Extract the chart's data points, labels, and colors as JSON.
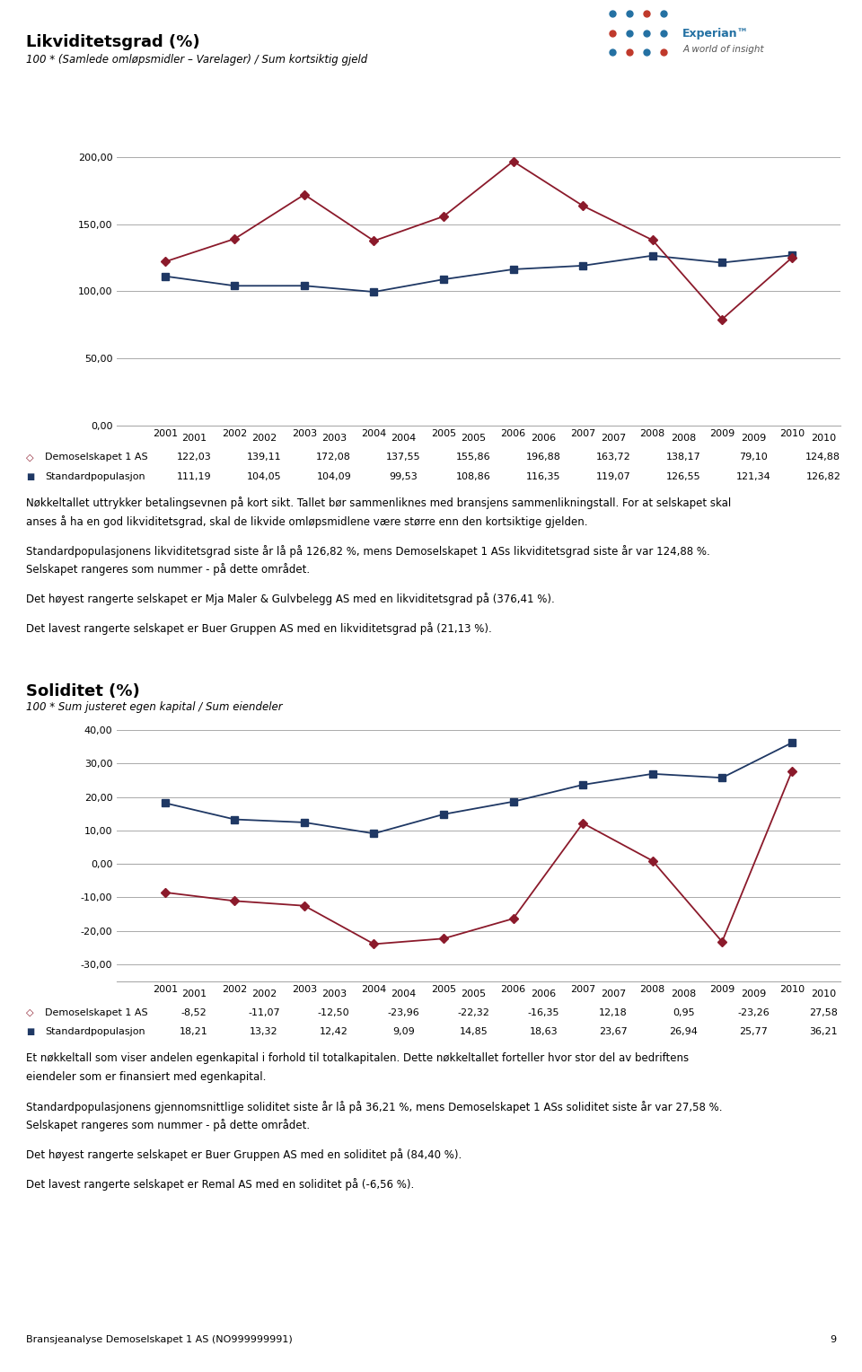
{
  "years": [
    2001,
    2002,
    2003,
    2004,
    2005,
    2006,
    2007,
    2008,
    2009,
    2010
  ],
  "liq_title": "Likviditetsgrad (%)",
  "liq_subtitle": "100 * (Samlede omløpsmidler – Varelager) / Sum kortsiktig gjeld",
  "liq_demo": [
    122.03,
    139.11,
    172.08,
    137.55,
    155.86,
    196.88,
    163.72,
    138.17,
    79.1,
    124.88
  ],
  "liq_std": [
    111.19,
    104.05,
    104.09,
    99.53,
    108.86,
    116.35,
    119.07,
    126.55,
    121.34,
    126.82
  ],
  "liq_ylim": [
    0,
    220
  ],
  "liq_yticks": [
    0.0,
    50.0,
    100.0,
    150.0,
    200.0
  ],
  "sol_title": "Soliditet (%)",
  "sol_subtitle": "100 * Sum justeret egen kapital / Sum eiendeler",
  "sol_demo": [
    -8.52,
    -11.07,
    -12.5,
    -23.96,
    -22.32,
    -16.35,
    12.18,
    0.95,
    -23.26,
    27.58
  ],
  "sol_std": [
    18.21,
    13.32,
    12.42,
    9.09,
    14.85,
    18.63,
    23.67,
    26.94,
    25.77,
    36.21
  ],
  "sol_ylim": [
    -35,
    45
  ],
  "sol_yticks": [
    -30.0,
    -20.0,
    -10.0,
    0.0,
    10.0,
    20.0,
    30.0,
    40.0
  ],
  "demo_color": "#8B1A2B",
  "std_color": "#1F3864",
  "grid_color": "#AAAAAA",
  "bg_color": "#FFFFFF",
  "text_color": "#000000",
  "demo_label": "Demoselskapet 1 AS",
  "std_label": "Standardpopulasjon",
  "liq_text_lines": [
    "Nøkkeltallet uttrykker betalingsevnen på kort sikt. Tallet bør sammenliknes med bransjens sammenlikningstall. For at selskapet skal",
    "anses å ha en god likviditetsgrad, skal de likvide omløpsmidlene være større enn den kortsiktige gjelden.",
    "",
    "Standardpopulasjonens likviditetsgrad siste år lå på 126,82 %, mens Demoselskapet 1 ASs likviditetsgrad siste år var 124,88 %.",
    "Selskapet rangeres som nummer - på dette området.",
    "",
    "Det høyest rangerte selskapet er Mja Maler & Gulvbelegg AS med en likviditetsgrad på (376,41 %).",
    "",
    "Det lavest rangerte selskapet er Buer Gruppen AS med en likviditetsgrad på (21,13 %)."
  ],
  "sol_text_lines": [
    "Et nøkkeltall som viser andelen egenkapital i forhold til totalkapitalen. Dette nøkkeltallet forteller hvor stor del av bedriftens",
    "eiendeler som er finansiert med egenkapital.",
    "",
    "Standardpopulasjonens gjennomsnittlige soliditet siste år lå på 36,21 %, mens Demoselskapet 1 ASs soliditet siste år var 27,58 %.",
    "Selskapet rangeres som nummer - på dette området.",
    "",
    "Det høyest rangerte selskapet er Buer Gruppen AS med en soliditet på (84,40 %).",
    "",
    "Det lavest rangerte selskapet er Remal AS med en soliditet på (-6,56 %)."
  ],
  "footer_text": "Bransjeanalyse Demoselskapet 1 AS (NO999999991)",
  "footer_page": "9"
}
